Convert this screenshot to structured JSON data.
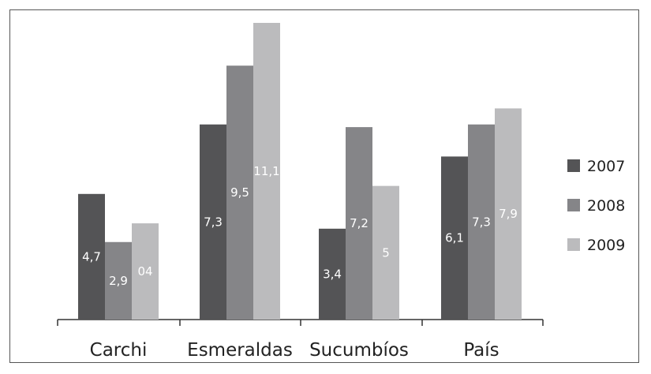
{
  "chart_data": {
    "type": "bar",
    "categories": [
      "Carchi",
      "Esmeraldas",
      "Sucumbíos",
      "País"
    ],
    "series": [
      {
        "name": "2007",
        "values": [
          4.7,
          7.3,
          3.4,
          6.1
        ],
        "labels": [
          "4,7",
          "7,3",
          "3,4",
          "6,1"
        ],
        "color": "#545456"
      },
      {
        "name": "2008",
        "values": [
          2.9,
          9.5,
          7.2,
          7.3
        ],
        "labels": [
          "2,9",
          "9,5",
          "7,2",
          "7,3"
        ],
        "color": "#858588"
      },
      {
        "name": "2009",
        "values": [
          3.6,
          11.1,
          5.0,
          7.9
        ],
        "labels": [
          "04",
          "11,1",
          "5",
          "7,9"
        ],
        "color": "#bbbbbd"
      }
    ],
    "ylim": [
      0,
      11.1
    ],
    "grid": false,
    "legend_position": "right"
  }
}
